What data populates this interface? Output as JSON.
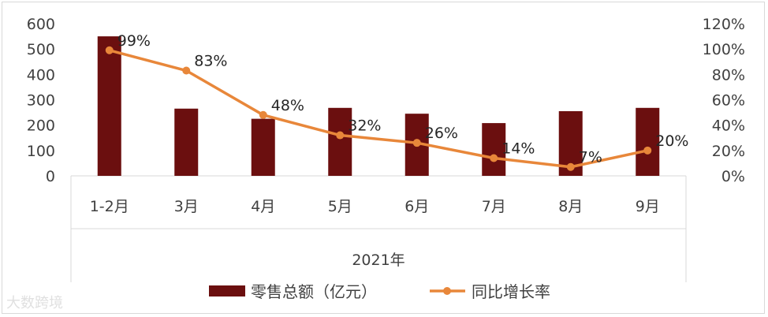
{
  "chart_data": {
    "type": "bar",
    "categories": [
      "1-2月",
      "3月",
      "4月",
      "5月",
      "6月",
      "7月",
      "8月",
      "9月"
    ],
    "xlabel": "2021年",
    "y_left": {
      "ylim": [
        0,
        600
      ],
      "ticks": [
        "0",
        "100",
        "200",
        "300",
        "400",
        "500",
        "600"
      ]
    },
    "y_right": {
      "ylim": [
        0,
        120
      ],
      "ticks": [
        "0%",
        "20%",
        "40%",
        "60%",
        "80%",
        "100%",
        "120%"
      ]
    },
    "series": [
      {
        "name": "零售总额（亿元）",
        "kind": "bar",
        "axis": "left",
        "color": "#6b0f0f",
        "values": [
          550,
          265,
          225,
          268,
          245,
          208,
          255,
          268
        ]
      },
      {
        "name": "同比增长率",
        "kind": "line",
        "axis": "right",
        "color": "#e8873a",
        "values": [
          99,
          83,
          48,
          32,
          26,
          14,
          7,
          20
        ],
        "labels": [
          "99%",
          "83%",
          "48%",
          "32%",
          "26%",
          "14%",
          "7%",
          "20%"
        ]
      }
    ],
    "legend_position": "bottom",
    "grid": false
  },
  "watermark": "大数跨境"
}
